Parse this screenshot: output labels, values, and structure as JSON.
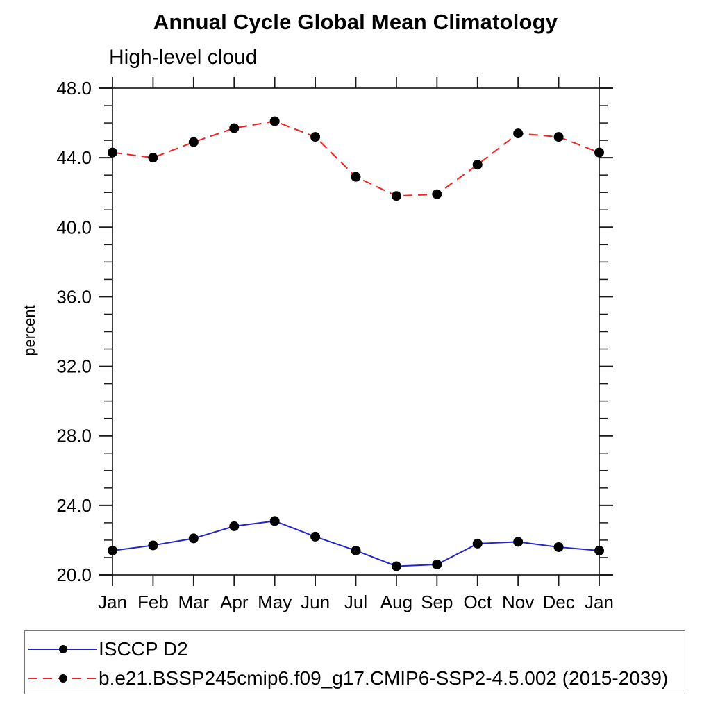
{
  "title": "Annual Cycle Global Mean Climatology",
  "subtitle": "High-level cloud",
  "ylabel": "percent",
  "colors": {
    "series1_line": "#2424cf",
    "series2_line": "#f52020",
    "marker": "#000000",
    "frame": "#3f3f3f",
    "tick": "#1a1a1a",
    "legend_border": "#777777"
  },
  "chart_data": {
    "type": "line",
    "title": "Annual Cycle Global Mean Climatology",
    "subtitle": "High-level cloud",
    "xlabel": "",
    "ylabel": "percent",
    "x": [
      "Jan",
      "Feb",
      "Mar",
      "Apr",
      "May",
      "Jun",
      "Jul",
      "Aug",
      "Sep",
      "Oct",
      "Nov",
      "Dec",
      "Jan"
    ],
    "series": [
      {
        "name": "ISCCP D2",
        "style": "solid",
        "color": "#2424cf",
        "marker": "filled-circle-black",
        "values": [
          21.4,
          21.7,
          22.1,
          22.8,
          23.1,
          22.2,
          21.4,
          20.5,
          20.6,
          21.8,
          21.9,
          21.6,
          21.4
        ]
      },
      {
        "name": "b.e21.BSSP245cmip6.f09_g17.CMIP6-SSP2-4.5.002 (2015-2039)",
        "style": "dashed",
        "color": "#f52020",
        "marker": "filled-circle-black",
        "values": [
          44.3,
          44.0,
          44.9,
          45.7,
          46.1,
          45.2,
          42.9,
          41.8,
          41.9,
          43.6,
          45.4,
          45.2,
          44.3
        ]
      }
    ],
    "ylim": [
      20.0,
      48.0
    ],
    "yticks_major": [
      20.0,
      24.0,
      28.0,
      32.0,
      36.0,
      40.0,
      44.0,
      48.0
    ],
    "ytick_labels": [
      "20.0",
      "24.0",
      "28.0",
      "32.0",
      "36.0",
      "40.0",
      "44.0",
      "48.0"
    ],
    "ytick_minor_step": 1.0,
    "grid": false,
    "tick_direction": "out",
    "legend_position": "bottom-left-box"
  },
  "legend": {
    "entries": [
      {
        "label": "ISCCP D2"
      },
      {
        "label": "b.e21.BSSP245cmip6.f09_g17.CMIP6-SSP2-4.5.002 (2015-2039)"
      }
    ]
  }
}
